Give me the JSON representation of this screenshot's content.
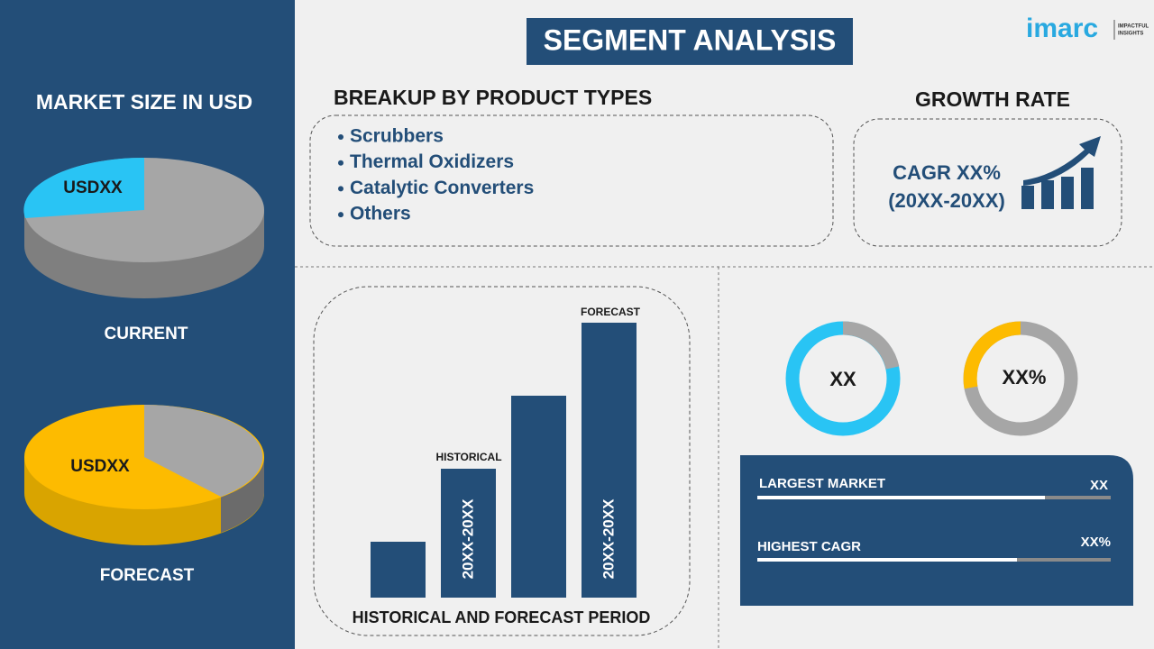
{
  "logo": {
    "name": "imarc",
    "tagline": [
      "IMPACTFUL",
      "INSIGHTS"
    ]
  },
  "title": "SEGMENT ANALYSIS",
  "market_size": {
    "heading": "MARKET SIZE IN USD",
    "current": {
      "value": "USDXX",
      "label": "CURRENT"
    },
    "forecast": {
      "value": "USDXX",
      "label": "FORECAST"
    }
  },
  "breakup": {
    "heading": "BREAKUP BY PRODUCT TYPES",
    "items": [
      "Scrubbers",
      "Thermal Oxidizers",
      "Catalytic Converters",
      "Others"
    ]
  },
  "growth": {
    "heading": "GROWTH RATE",
    "cagr": "CAGR XX%",
    "period": "(20XX-20XX)"
  },
  "period_chart": {
    "caption": "HISTORICAL AND FORECAST PERIOD",
    "historical_label": "HISTORICAL",
    "forecast_label": "FORECAST",
    "historical_period": "20XX-20XX",
    "forecast_period": "20XX-20XX"
  },
  "donuts": [
    "XX",
    "XX%"
  ],
  "stats": [
    {
      "label": "LARGEST MARKET",
      "value": "XX"
    },
    {
      "label": "HIGHEST CAGR",
      "value": "XX%"
    }
  ]
}
